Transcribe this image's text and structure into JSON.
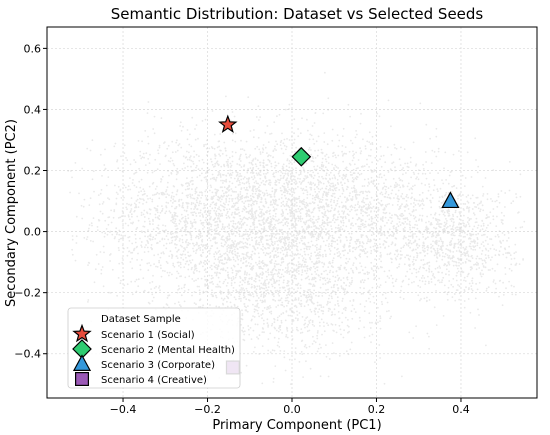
{
  "chart_data": {
    "type": "scatter",
    "title": "Semantic Distribution: Dataset vs Selected Seeds",
    "xlabel": "Primary Component (PC1)",
    "ylabel": "Secondary Component (PC2)",
    "xlim": [
      -0.58,
      0.58
    ],
    "ylim": [
      -0.545,
      0.67
    ],
    "xticks": [
      -0.4,
      -0.2,
      0.0,
      0.2,
      0.4
    ],
    "yticks": [
      -0.4,
      -0.2,
      0.0,
      0.2,
      0.4,
      0.6
    ],
    "xtick_labels": [
      "−0.4",
      "−0.2",
      "0.0",
      "0.2",
      "0.4"
    ],
    "ytick_labels": [
      "−0.4",
      "−0.2",
      "0.0",
      "0.2",
      "0.4",
      "0.6"
    ],
    "grid": true,
    "legend_position": "lower-left",
    "background_series": {
      "name": "Dataset Sample",
      "color": "#cfcfcf",
      "clusters": [
        {
          "cx": -0.17,
          "cy": 0.04,
          "sx": 0.15,
          "sy": 0.14,
          "count": 2200
        },
        {
          "cx": 0.03,
          "cy": 0.08,
          "sx": 0.15,
          "sy": 0.12,
          "count": 1400
        },
        {
          "cx": -0.02,
          "cy": -0.2,
          "sx": 0.12,
          "sy": 0.11,
          "count": 1100
        },
        {
          "cx": 0.38,
          "cy": -0.03,
          "sx": 0.08,
          "sy": 0.1,
          "count": 900
        },
        {
          "cx": 0.2,
          "cy": 0.05,
          "sx": 0.1,
          "sy": 0.12,
          "count": 500
        }
      ]
    },
    "series": [
      {
        "name": "Scenario 1 (Social)",
        "marker": "star",
        "color": "#e74c3c",
        "x": -0.152,
        "y": 0.35
      },
      {
        "name": "Scenario 2 (Mental Health)",
        "marker": "diamond",
        "color": "#2ecc71",
        "x": 0.022,
        "y": 0.245
      },
      {
        "name": "Scenario 3 (Corporate)",
        "marker": "triangle",
        "color": "#3498db",
        "x": 0.375,
        "y": 0.1
      },
      {
        "name": "Scenario 4 (Creative)",
        "marker": "square",
        "color": "#9b59b6",
        "x": -0.14,
        "y": -0.445
      }
    ]
  }
}
